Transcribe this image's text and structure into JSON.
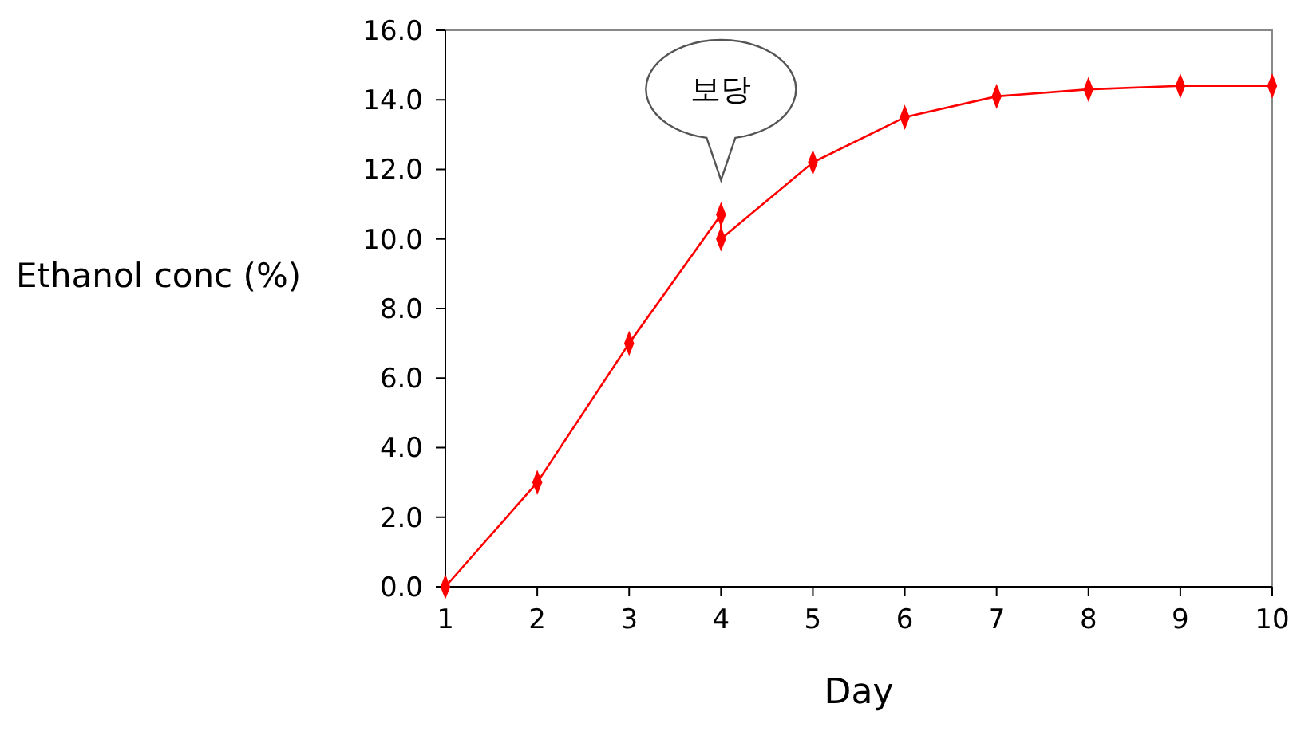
{
  "chart_data": {
    "type": "line",
    "xlabel": "Day",
    "ylabel": "Ethanol conc (%)",
    "x": [
      1,
      2,
      3,
      4,
      4,
      5,
      6,
      7,
      8,
      9,
      10
    ],
    "series": [
      {
        "color": "#ff0000",
        "values": [
          0,
          3.0,
          7.0,
          10.7,
          10.0,
          12.2,
          13.5,
          14.1,
          14.3,
          14.4,
          14.4
        ]
      }
    ],
    "xlim": [
      1,
      10
    ],
    "xticks": [
      1,
      2,
      3,
      4,
      5,
      6,
      7,
      8,
      9,
      10
    ],
    "ylim": [
      0,
      16
    ],
    "yticks": [
      {
        "value": 0,
        "label": "0.0"
      },
      {
        "value": 2,
        "label": "2.0"
      },
      {
        "value": 4,
        "label": "4.0"
      },
      {
        "value": 6,
        "label": "6.0"
      },
      {
        "value": 8,
        "label": "8.0"
      },
      {
        "value": 10,
        "label": "10.0"
      },
      {
        "value": 12,
        "label": "12.0"
      },
      {
        "value": 14,
        "label": "14.0"
      },
      {
        "value": 16,
        "label": "16.0"
      }
    ],
    "annotations": [
      "보당"
    ],
    "marker": "diamond",
    "grid": false,
    "line_style": "solid"
  }
}
